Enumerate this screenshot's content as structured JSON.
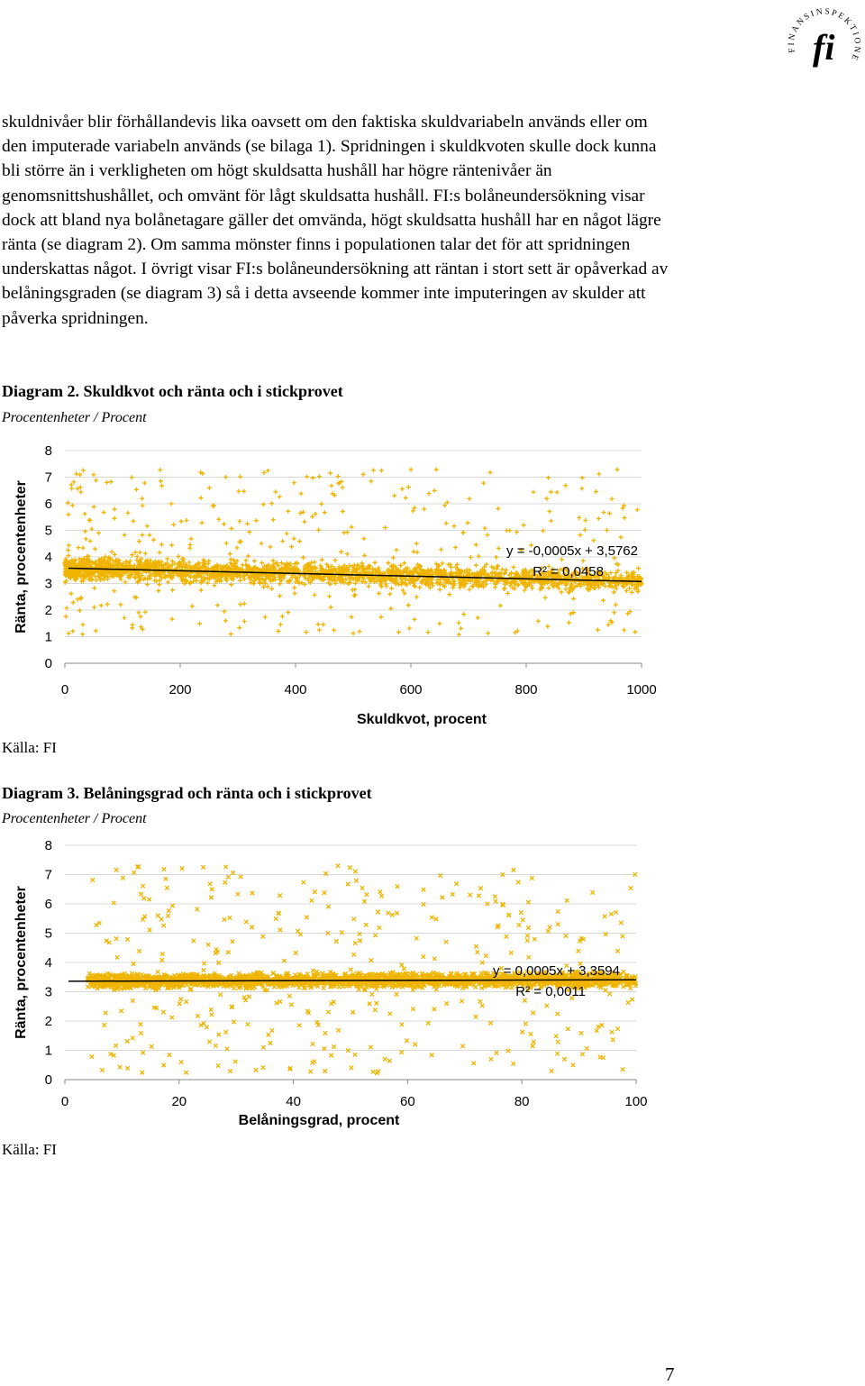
{
  "logo": {
    "arc_text": "FINANSINSPEKTIONEN",
    "mark": "fi"
  },
  "body_paragraph": "skuldnivåer blir förhållandevis lika oavsett om den faktiska skuldvariabeln används eller om den imputerade variabeln används (se bilaga 1). Spridningen i skuldkvoten skulle dock kunna bli större än i verkligheten om högt skuldsatta hushåll har högre räntenivåer än genomsnittshushållet, och omvänt för lågt skuldsatta hushåll. FI:s bolåneundersökning visar dock att bland nya bolånetagare gäller det omvända, högt skuldsatta hushåll har en något lägre ränta (se diagram 2). Om samma mönster finns i populationen talar det för att spridningen underskattas något. I övrigt visar FI:s bolåneundersökning att räntan i stort sett är opåverkad av belåningsgraden (se diagram 3) så i detta avseende kommer inte imputeringen av skulder att påverka spridningen.",
  "diagram2": {
    "title": "Diagram 2. Skuldkvot och ränta och i stickprovet",
    "subtitle": "Procentenheter / Procent",
    "source": "Källa: FI"
  },
  "diagram3": {
    "title": "Diagram 3. Belåningsgrad och ränta och i stickprovet",
    "subtitle": "Procentenheter / Procent",
    "source": "Källa: FI"
  },
  "page_number": "7",
  "colors": {
    "points": "#F0B400",
    "trend": "#000000",
    "grid": "#d9d9d9"
  },
  "chart_data": [
    {
      "type": "scatter",
      "title": "",
      "xlabel": "Skuldkvot, procent",
      "ylabel": "Ränta, procentenheter",
      "xlim": [
        0,
        1000
      ],
      "ylim": [
        0,
        8
      ],
      "xticks": [
        "0",
        "200",
        "400",
        "600",
        "800",
        "1000"
      ],
      "yticks": [
        "0",
        "1",
        "2",
        "3",
        "4",
        "5",
        "6",
        "7",
        "8"
      ],
      "grid": "horizontal",
      "series": [
        {
          "marker": "plus",
          "x_range": [
            0,
            1000
          ],
          "dense_band_y": [
            2.7,
            4.2
          ],
          "sparse_spread_y": [
            1.0,
            7.3
          ]
        }
      ],
      "trendline": {
        "slope": -0.0005,
        "intercept": 3.5762,
        "equation": "y = -0,0005x + 3,5762",
        "r2": "R² = 0,0458"
      }
    },
    {
      "type": "scatter",
      "title": "",
      "xlabel": "Belåningsgrad, procent",
      "ylabel": "Ränta, procentenheter",
      "xlim": [
        0,
        100
      ],
      "ylim": [
        0,
        8
      ],
      "xticks": [
        "0",
        "20",
        "40",
        "60",
        "80",
        "100"
      ],
      "yticks": [
        "0",
        "1",
        "2",
        "3",
        "4",
        "5",
        "6",
        "7",
        "8"
      ],
      "grid": "horizontal",
      "series": [
        {
          "marker": "x",
          "x_range": [
            0,
            100
          ],
          "dense_band_y": [
            3.0,
            3.9
          ],
          "sparse_spread_y": [
            0.2,
            7.3
          ]
        }
      ],
      "trendline": {
        "slope": 0.0005,
        "intercept": 3.3594,
        "equation": "y = 0,0005x + 3,3594",
        "r2": "R² = 0,0011"
      }
    }
  ]
}
